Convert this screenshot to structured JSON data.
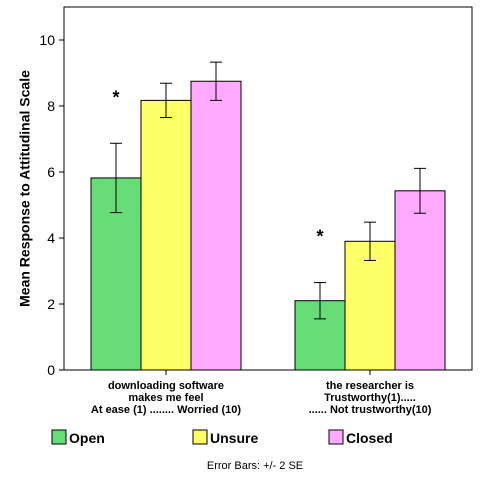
{
  "chart_data": {
    "type": "bar",
    "ylabel": "Mean Response to Attitudinal Scale",
    "ylim": [
      0,
      11
    ],
    "yticks": [
      0,
      2,
      4,
      6,
      8,
      10
    ],
    "grid": false,
    "legend_position": "bottom",
    "categories": [
      [
        "downloading software",
        "makes me feel",
        "At ease (1) ........ Worried (10)"
      ],
      [
        "the researcher is",
        "Trustworthy(1).....",
        "...... Not trustworthy(10)"
      ]
    ],
    "series": [
      {
        "name": "Open",
        "color": "#66dd77",
        "values": [
          5.82,
          2.1
        ],
        "err_low": [
          4.77,
          1.55
        ],
        "err_high": [
          6.87,
          2.65
        ]
      },
      {
        "name": "Unsure",
        "color": "#ffff66",
        "values": [
          8.17,
          3.9
        ],
        "err_low": [
          7.65,
          3.32
        ],
        "err_high": [
          8.69,
          4.48
        ]
      },
      {
        "name": "Closed",
        "color": "#ffaaff",
        "values": [
          8.75,
          5.43
        ],
        "err_low": [
          8.17,
          4.75
        ],
        "err_high": [
          9.33,
          6.11
        ]
      }
    ],
    "annotations": [
      {
        "text": "*",
        "category": 0
      },
      {
        "text": "*",
        "category": 1
      }
    ],
    "footnote": "Error Bars: +/- 2 SE"
  }
}
